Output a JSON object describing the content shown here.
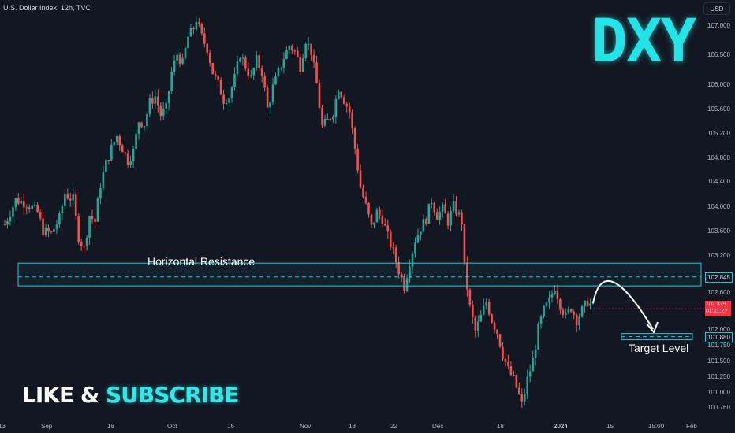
{
  "header": {
    "symbol": "U.S. Dollar Index, 12h, TVC",
    "currency": "USD"
  },
  "overlay": {
    "ticker": "DXY",
    "cta_like": "LIKE",
    "cta_amp": "&",
    "cta_subscribe": "SUBSCRIBE"
  },
  "annotations": {
    "resistance_label": "Horizontal Resistance",
    "target_label": "Target Level",
    "resistance_value": "102.845",
    "target_value": "101.880",
    "last_price_lines": [
      "102.3?9",
      "01:21:2?"
    ]
  },
  "colors": {
    "background": "#131722",
    "up": "#26a69a",
    "down": "#ef5350",
    "accent": "#31e7ea"
  },
  "chart_data": {
    "type": "candlestick",
    "title": "U.S. Dollar Index, 12h, TVC",
    "ylim": [
      100.6,
      107.25
    ],
    "y_ticks": [
      107.0,
      106.5,
      106.0,
      105.6,
      105.2,
      104.8,
      104.4,
      104.0,
      103.6,
      103.2,
      102.6,
      102.0,
      101.75,
      101.5,
      101.25,
      101.0,
      100.76
    ],
    "y_tick_labels": [
      "107.000",
      "106.500",
      "106.000",
      "105.600",
      "105.200",
      "104.800",
      "104.400",
      "104.000",
      "103.600",
      "103.200",
      "102.600",
      "102.000",
      "101.750",
      "101.500",
      "101.250",
      "101.000",
      "100.760"
    ],
    "x_tick_labels": [
      "13",
      "Sep",
      "18",
      "Oct",
      "16",
      "Nov",
      "13",
      "22",
      "Dec",
      "18",
      "2024",
      "15",
      "15:00",
      "Feb"
    ],
    "close_path": [
      [
        0,
        103.7
      ],
      [
        4,
        104.1
      ],
      [
        8,
        104.05
      ],
      [
        12,
        103.9
      ],
      [
        14,
        103.6
      ],
      [
        17,
        103.55
      ],
      [
        20,
        103.8
      ],
      [
        22,
        104.2
      ],
      [
        25,
        104.1
      ],
      [
        27,
        103.5
      ],
      [
        29,
        103.3
      ],
      [
        31,
        103.85
      ],
      [
        33,
        103.75
      ],
      [
        35,
        104.35
      ],
      [
        37,
        104.7
      ],
      [
        39,
        104.95
      ],
      [
        41,
        105.15
      ],
      [
        43,
        104.95
      ],
      [
        45,
        104.75
      ],
      [
        47,
        104.9
      ],
      [
        49,
        105.4
      ],
      [
        51,
        105.35
      ],
      [
        53,
        105.7
      ],
      [
        55,
        105.8
      ],
      [
        57,
        105.5
      ],
      [
        59,
        105.6
      ],
      [
        61,
        106.2
      ],
      [
        63,
        106.5
      ],
      [
        65,
        106.35
      ],
      [
        67,
        106.8
      ],
      [
        69,
        106.95
      ],
      [
        70,
        107.1
      ],
      [
        72,
        106.8
      ],
      [
        74,
        106.6
      ],
      [
        76,
        106.2
      ],
      [
        78,
        106.0
      ],
      [
        80,
        105.75
      ],
      [
        82,
        105.8
      ],
      [
        84,
        106.1
      ],
      [
        86,
        106.5
      ],
      [
        88,
        106.3
      ],
      [
        90,
        106.1
      ],
      [
        92,
        106.4
      ],
      [
        94,
        106.2
      ],
      [
        96,
        105.6
      ],
      [
        98,
        105.95
      ],
      [
        100,
        106.2
      ],
      [
        102,
        106.45
      ],
      [
        104,
        106.65
      ],
      [
        106,
        106.55
      ],
      [
        108,
        106.3
      ],
      [
        110,
        106.75
      ],
      [
        112,
        106.55
      ],
      [
        114,
        106.0
      ],
      [
        116,
        105.3
      ],
      [
        118,
        105.4
      ],
      [
        120,
        105.55
      ],
      [
        122,
        105.95
      ],
      [
        124,
        105.75
      ],
      [
        126,
        105.55
      ],
      [
        128,
        104.95
      ],
      [
        130,
        104.3
      ],
      [
        132,
        104.0
      ],
      [
        134,
        103.65
      ],
      [
        136,
        103.9
      ],
      [
        138,
        103.8
      ],
      [
        140,
        103.5
      ],
      [
        142,
        103.25
      ],
      [
        144,
        102.95
      ],
      [
        146,
        102.7
      ],
      [
        148,
        103.1
      ],
      [
        150,
        103.45
      ],
      [
        152,
        103.65
      ],
      [
        154,
        103.8
      ],
      [
        156,
        104.1
      ],
      [
        158,
        103.85
      ],
      [
        160,
        103.95
      ],
      [
        162,
        103.75
      ],
      [
        164,
        104.0
      ],
      [
        166,
        103.85
      ],
      [
        167,
        103.75
      ],
      [
        168,
        103.0
      ],
      [
        170,
        102.35
      ],
      [
        172,
        101.95
      ],
      [
        174,
        102.2
      ],
      [
        176,
        102.45
      ],
      [
        178,
        102.15
      ],
      [
        180,
        101.95
      ],
      [
        182,
        101.6
      ],
      [
        184,
        101.35
      ],
      [
        186,
        101.2
      ],
      [
        188,
        100.95
      ],
      [
        189,
        100.8
      ],
      [
        191,
        101.2
      ],
      [
        193,
        101.5
      ],
      [
        195,
        102.0
      ],
      [
        197,
        102.3
      ],
      [
        199,
        102.45
      ],
      [
        201,
        102.7
      ],
      [
        203,
        102.4
      ],
      [
        205,
        102.2
      ],
      [
        207,
        102.35
      ],
      [
        209,
        102.15
      ],
      [
        211,
        102.3
      ],
      [
        213,
        102.45
      ],
      [
        215,
        102.35
      ]
    ],
    "resistance_zone": [
      102.7,
      103.07
    ],
    "resistance_level": 102.845,
    "target_level": 101.88,
    "target_zone": [
      101.83,
      101.93
    ]
  }
}
